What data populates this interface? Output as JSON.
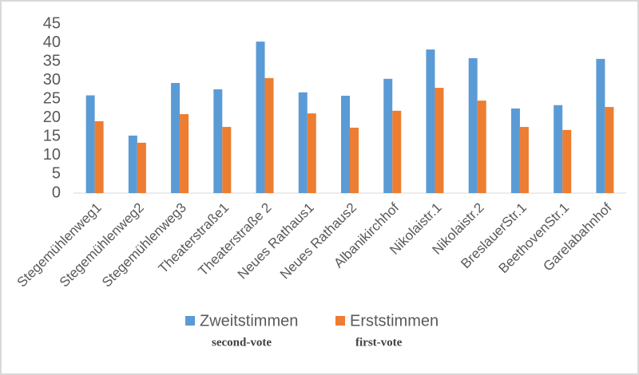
{
  "chart_data": {
    "type": "bar",
    "categories": [
      "Stegemühlenweg1",
      "Stegemühlenweg2",
      "Stegemühlenweg3",
      "Theaterstraße1",
      "Theaterstraße 2",
      "Neues Rathaus1",
      "Neues Rathaus2",
      "Albanikirchhof",
      "Nikolaistr.1",
      "Nikolaistr.2",
      "BreslauerStr.1",
      "BeethovenStr.1",
      "Garelabahnhof"
    ],
    "series": [
      {
        "name": "Zweitstimmen",
        "annotation": "second-vote",
        "color": "#5b9bd5",
        "values": [
          26,
          15.3,
          29.3,
          27.6,
          40.3,
          26.8,
          25.9,
          30.4,
          38.2,
          35.9,
          22.5,
          23.4,
          35.7
        ]
      },
      {
        "name": "Erststimmen",
        "annotation": "first-vote",
        "color": "#ed7d31",
        "values": [
          19.1,
          13.4,
          21,
          17.6,
          30.6,
          21.2,
          17.4,
          21.9,
          28,
          24.6,
          17.6,
          16.8,
          22.9
        ]
      }
    ],
    "ylim": [
      0,
      45
    ],
    "yticks": [
      0,
      5,
      10,
      15,
      20,
      25,
      30,
      35,
      40,
      45
    ],
    "grid": false,
    "legend": "bottom"
  }
}
